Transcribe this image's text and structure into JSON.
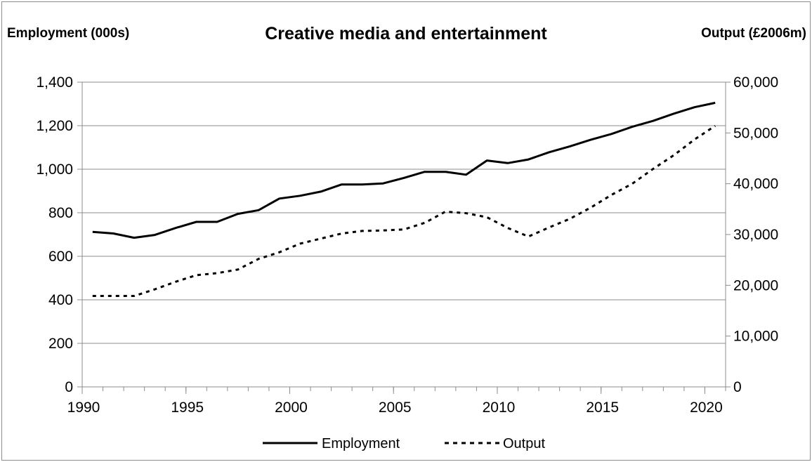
{
  "chart_data": {
    "type": "line",
    "title": "Creative media and entertainment",
    "ylabel": "Employment (000s)",
    "y2label": "Output (£2006m)",
    "xlim": [
      1990,
      2021
    ],
    "ylim": [
      0,
      1400
    ],
    "y2lim": [
      0,
      60000
    ],
    "x_ticks": [
      "1990",
      "1995",
      "2000",
      "2005",
      "2010",
      "2015",
      "2020"
    ],
    "y_ticks": [
      "0",
      "200",
      "400",
      "600",
      "800",
      "1,000",
      "1,200",
      "1,400"
    ],
    "y2_ticks": [
      "0",
      "10,000",
      "20,000",
      "30,000",
      "40,000",
      "50,000",
      "60,000"
    ],
    "grid": "horizontal",
    "legend": "bottom",
    "x": [
      1990.5,
      1991.5,
      1992.5,
      1993.5,
      1994.5,
      1995.5,
      1996.5,
      1997.5,
      1998.5,
      1999.5,
      2000.5,
      2001.5,
      2002.5,
      2003.5,
      2004.5,
      2005.5,
      2006.5,
      2007.5,
      2008.5,
      2009.5,
      2010.5,
      2011.5,
      2012.5,
      2013.5,
      2014.5,
      2015.5,
      2016.5,
      2017.5,
      2018.5,
      2019.5,
      2020.5
    ],
    "series": [
      {
        "name": "Employment",
        "axis": "left",
        "style": "solid",
        "values": [
          712,
          705,
          685,
          698,
          730,
          758,
          758,
          795,
          812,
          865,
          878,
          897,
          930,
          930,
          935,
          960,
          988,
          988,
          975,
          1040,
          1028,
          1045,
          1078,
          1105,
          1135,
          1162,
          1195,
          1222,
          1255,
          1285,
          1305
        ]
      },
      {
        "name": "Output",
        "axis": "right",
        "style": "dotted",
        "values": [
          17900,
          17900,
          17900,
          19200,
          20700,
          22000,
          22400,
          23100,
          25200,
          26500,
          28200,
          29200,
          30200,
          30700,
          30800,
          31000,
          32300,
          34500,
          34200,
          33400,
          31300,
          29600,
          31400,
          33100,
          35300,
          37800,
          40000,
          42900,
          45600,
          48700,
          51400
        ]
      }
    ]
  },
  "colors": {
    "line": "#000000",
    "grid": "#8c8c8c",
    "frame": "#8c8c8c"
  }
}
